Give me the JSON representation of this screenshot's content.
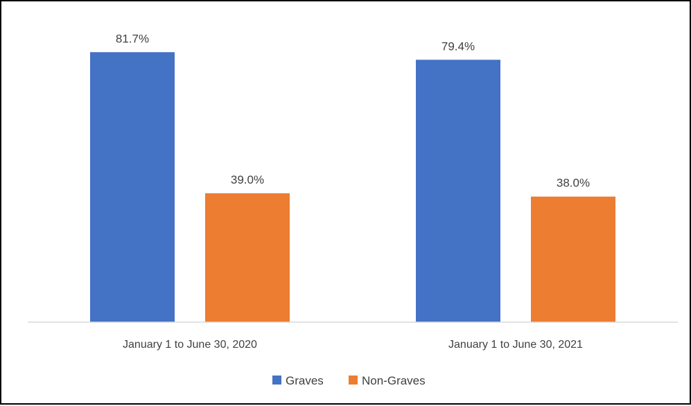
{
  "chart_data": {
    "type": "bar",
    "title": "",
    "xlabel": "",
    "ylabel": "",
    "categories": [
      "January 1 to June 30, 2020",
      "January 1 to June 30, 2021"
    ],
    "series": [
      {
        "name": "Graves",
        "values": [
          81.7,
          79.4
        ],
        "labels": [
          "81.7%",
          "79.4%"
        ],
        "color": "#4472C4"
      },
      {
        "name": "Non-Graves",
        "values": [
          39.0,
          38.0
        ],
        "labels": [
          "39.0%",
          "38.0%"
        ],
        "color": "#ED7D31"
      }
    ],
    "ylim": [
      0,
      100
    ],
    "value_unit": "%",
    "grid": false,
    "legend_position": "bottom"
  }
}
